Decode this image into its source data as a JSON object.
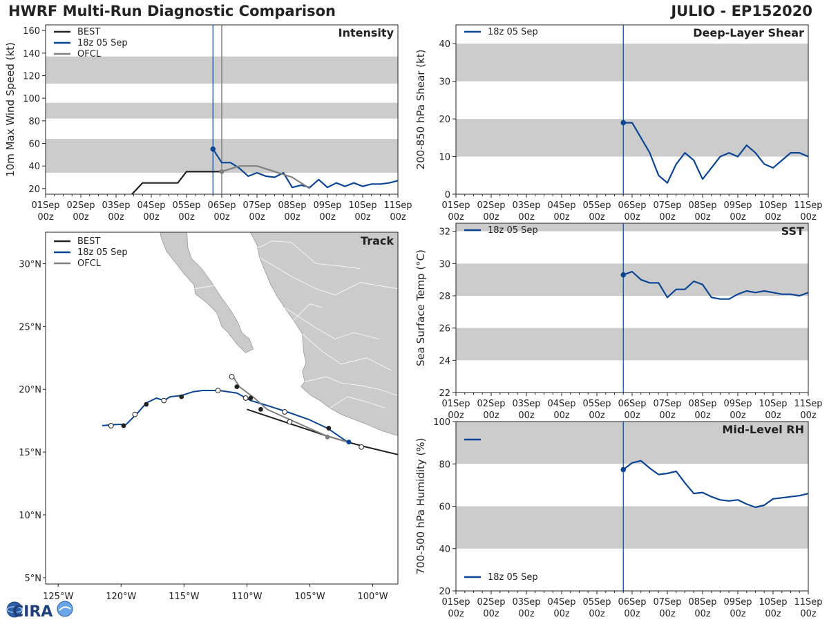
{
  "header": {
    "title_left": "HWRF Multi-Run Diagnostic Comparison",
    "title_right": "JULIO - EP152020"
  },
  "logo": {
    "text": "CIRA"
  },
  "colors": {
    "best": "#222222",
    "run": "#0a4595",
    "ofcl": "#808080",
    "band": "#cccccc",
    "land": "#cbcbcb"
  },
  "time_axis": {
    "ticks": [
      {
        "day": "01Sep",
        "hour": "00z"
      },
      {
        "day": "02Sep",
        "hour": "00z"
      },
      {
        "day": "03Sep",
        "hour": "00z"
      },
      {
        "day": "04Sep",
        "hour": "00z"
      },
      {
        "day": "05Sep",
        "hour": "00z"
      },
      {
        "day": "06Sep",
        "hour": "00z"
      },
      {
        "day": "07Sep",
        "hour": "00z"
      },
      {
        "day": "08Sep",
        "hour": "00z"
      },
      {
        "day": "09Sep",
        "hour": "00z"
      },
      {
        "day": "10Sep",
        "hour": "00z"
      },
      {
        "day": "11Sep",
        "hour": "00z"
      }
    ],
    "range_days": [
      0,
      10
    ],
    "init_day": 4.75,
    "ofcl_day": 5.0
  },
  "chart_data": [
    {
      "id": "intensity",
      "type": "line",
      "title": "Intensity",
      "ylabel": "10m Max Wind Speed (kt)",
      "ylim": [
        15,
        165
      ],
      "yticks": [
        20,
        40,
        60,
        80,
        100,
        120,
        140,
        160
      ],
      "bands": [
        [
          34,
          64
        ],
        [
          82,
          96
        ],
        [
          113,
          137
        ]
      ],
      "legend": [
        "BEST",
        "18z 05 Sep",
        "OFCL"
      ],
      "series": [
        {
          "name": "BEST",
          "color_key": "best",
          "x": [
            2.0,
            2.75,
            3.0,
            3.25,
            3.5,
            3.75,
            4.0,
            4.25,
            4.5,
            4.75,
            5.0
          ],
          "y": [
            0,
            25,
            25,
            25,
            25,
            25,
            35,
            35,
            35,
            35,
            35
          ]
        },
        {
          "name": "18z 05 Sep",
          "color_key": "run",
          "x": [
            4.75,
            5.0,
            5.25,
            5.5,
            5.75,
            6.0,
            6.25,
            6.5,
            6.75,
            7.0,
            7.25,
            7.5,
            7.75,
            8.0,
            8.25,
            8.5,
            8.75,
            9.0,
            9.25,
            9.5,
            9.75,
            10.0
          ],
          "y": [
            55,
            43,
            43,
            38,
            31,
            34,
            31,
            30,
            34,
            21,
            23,
            21,
            28,
            21,
            25,
            22,
            25,
            22,
            24,
            24,
            25,
            27
          ]
        },
        {
          "name": "OFCL",
          "color_key": "ofcl",
          "x": [
            5.0,
            5.5,
            6.0,
            6.5,
            7.0,
            7.5
          ],
          "y": [
            35,
            40,
            40,
            35,
            30,
            20
          ]
        }
      ]
    },
    {
      "id": "shear",
      "type": "line",
      "title": "Deep-Layer Shear",
      "ylabel": "200-850 hPa Shear (kt)",
      "ylim": [
        0,
        45
      ],
      "yticks": [
        0,
        10,
        20,
        30,
        40
      ],
      "bands": [
        [
          10,
          20
        ],
        [
          30,
          40
        ]
      ],
      "legend": [
        "18z 05 Sep"
      ],
      "series": [
        {
          "name": "18z 05 Sep",
          "color_key": "run",
          "x": [
            4.75,
            5.0,
            5.25,
            5.5,
            5.75,
            6.0,
            6.25,
            6.5,
            6.75,
            7.0,
            7.25,
            7.5,
            7.75,
            8.0,
            8.25,
            8.5,
            8.75,
            9.0,
            9.25,
            9.5,
            9.75,
            10.0
          ],
          "y": [
            19,
            19,
            15,
            11,
            5,
            3,
            8,
            11,
            9,
            4,
            7,
            10,
            11,
            10,
            13,
            11,
            8,
            7,
            9,
            11,
            11,
            10
          ]
        }
      ]
    },
    {
      "id": "sst",
      "type": "line",
      "title": "SST",
      "ylabel": "Sea Surface Temp (°C)",
      "ylim": [
        22,
        32.5
      ],
      "yticks": [
        22,
        24,
        26,
        28,
        30,
        32
      ],
      "bands": [
        [
          24,
          26
        ],
        [
          28,
          30
        ],
        [
          32,
          32.5
        ]
      ],
      "legend": [
        "18z 05 Sep"
      ],
      "series": [
        {
          "name": "18z 05 Sep",
          "color_key": "run",
          "x": [
            4.75,
            5.0,
            5.25,
            5.5,
            5.75,
            6.0,
            6.25,
            6.5,
            6.75,
            7.0,
            7.25,
            7.5,
            7.75,
            8.0,
            8.25,
            8.5,
            8.75,
            9.0,
            9.25,
            9.5,
            9.75,
            10.0
          ],
          "y": [
            29.3,
            29.5,
            29.0,
            28.8,
            28.8,
            27.9,
            28.4,
            28.4,
            28.9,
            28.7,
            27.9,
            27.8,
            27.8,
            28.1,
            28.3,
            28.2,
            28.3,
            28.2,
            28.1,
            28.1,
            28.0,
            28.2
          ]
        }
      ]
    },
    {
      "id": "rh",
      "type": "line",
      "title": "Mid-Level RH",
      "ylabel": "700-500 hPa Humidity (%)",
      "ylim": [
        20,
        100
      ],
      "yticks": [
        20,
        40,
        60,
        80,
        100
      ],
      "bands": [
        [
          40,
          60
        ],
        [
          80,
          100
        ]
      ],
      "legend": [
        "18z 05 Sep"
      ],
      "series": [
        {
          "name": "18z 05 Sep",
          "color_key": "run",
          "x": [
            4.75,
            5.0,
            5.25,
            5.5,
            5.75,
            6.0,
            6.25,
            6.5,
            6.75,
            7.0,
            7.25,
            7.5,
            7.75,
            8.0,
            8.25,
            8.5,
            8.75,
            9.0,
            9.25,
            9.5,
            9.75,
            10.0
          ],
          "y": [
            77.3,
            80.5,
            81.5,
            78,
            75,
            75.5,
            76.5,
            71,
            66,
            66.5,
            64.5,
            63,
            62.5,
            63,
            61,
            59.5,
            60.5,
            63.5,
            64,
            64.5,
            65,
            66
          ]
        }
      ]
    },
    {
      "id": "track",
      "type": "scatter",
      "title": "Track",
      "xlim": [
        -126,
        -98
      ],
      "ylim": [
        4.5,
        32.5
      ],
      "xticks": [
        {
          "v": -125,
          "label": "125°W"
        },
        {
          "v": -120,
          "label": "120°W"
        },
        {
          "v": -115,
          "label": "115°W"
        },
        {
          "v": -110,
          "label": "110°W"
        },
        {
          "v": -105,
          "label": "105°W"
        },
        {
          "v": -100,
          "label": "100°W"
        }
      ],
      "yticks": [
        {
          "v": 5,
          "label": "5°N"
        },
        {
          "v": 10,
          "label": "10°N"
        },
        {
          "v": 15,
          "label": "15°N"
        },
        {
          "v": 20,
          "label": "20°N"
        },
        {
          "v": 25,
          "label": "25°N"
        },
        {
          "v": 30,
          "label": "30°N"
        }
      ],
      "legend": [
        "BEST",
        "18z 05 Sep",
        "OFCL"
      ],
      "series": [
        {
          "name": "BEST",
          "color_key": "best",
          "lon": [
            -98,
            -100.5,
            -102,
            -103.7,
            -105.5,
            -107,
            -108.5,
            -110
          ],
          "lat": [
            14.8,
            15.4,
            15.8,
            16.3,
            16.9,
            17.4,
            17.9,
            18.4
          ]
        },
        {
          "name": "18z 05 Sep",
          "color_key": "run",
          "lon": [
            -102,
            -103.6,
            -105.1,
            -106.8,
            -108.7,
            -109.7,
            -110.8,
            -112.2,
            -113.5,
            -114.3,
            -115.2,
            -116.1,
            -116.6,
            -117.2,
            -118,
            -118.7,
            -119.6,
            -120.3,
            -121.5
          ],
          "lat": [
            15.8,
            16.9,
            17.6,
            18.2,
            18.8,
            19.1,
            19.7,
            19.9,
            19.9,
            19.8,
            19.5,
            19.4,
            19.1,
            19.3,
            18.9,
            18.1,
            17.2,
            17.2,
            17.1
          ]
        },
        {
          "name": "OFCL",
          "color_key": "ofcl",
          "lon": [
            -102,
            -103.7,
            -106.4,
            -108.4,
            -109.4,
            -110.6,
            -111.1
          ],
          "lat": [
            15.8,
            16.3,
            17.5,
            18.4,
            19.3,
            20.2,
            21.0
          ]
        }
      ],
      "markers": [
        {
          "lon": -101.9,
          "lat": 15.8,
          "style": "run-filled"
        },
        {
          "lon": -103.5,
          "lat": 16.9,
          "style": "best-filled"
        },
        {
          "lon": -103.6,
          "lat": 16.2,
          "style": "ofcl-filled"
        },
        {
          "lon": -100.9,
          "lat": 15.4,
          "style": "open"
        },
        {
          "lon": -106.6,
          "lat": 17.4,
          "style": "open"
        },
        {
          "lon": -107,
          "lat": 18.2,
          "style": "open"
        },
        {
          "lon": -108.9,
          "lat": 18.4,
          "style": "best-filled"
        },
        {
          "lon": -109.7,
          "lat": 19.3,
          "style": "best-filled"
        },
        {
          "lon": -110.1,
          "lat": 19.3,
          "style": "open"
        },
        {
          "lon": -110.8,
          "lat": 20.2,
          "style": "best-filled"
        },
        {
          "lon": -111.2,
          "lat": 21.0,
          "style": "open"
        },
        {
          "lon": -112.3,
          "lat": 19.9,
          "style": "open"
        },
        {
          "lon": -115.2,
          "lat": 19.4,
          "style": "best-filled"
        },
        {
          "lon": -116.6,
          "lat": 19.1,
          "style": "open"
        },
        {
          "lon": -118,
          "lat": 18.8,
          "style": "best-filled"
        },
        {
          "lon": -118.9,
          "lat": 18.0,
          "style": "open"
        },
        {
          "lon": -119.8,
          "lat": 17.1,
          "style": "best-filled"
        },
        {
          "lon": -120.8,
          "lat": 17.1,
          "style": "open"
        }
      ]
    }
  ]
}
